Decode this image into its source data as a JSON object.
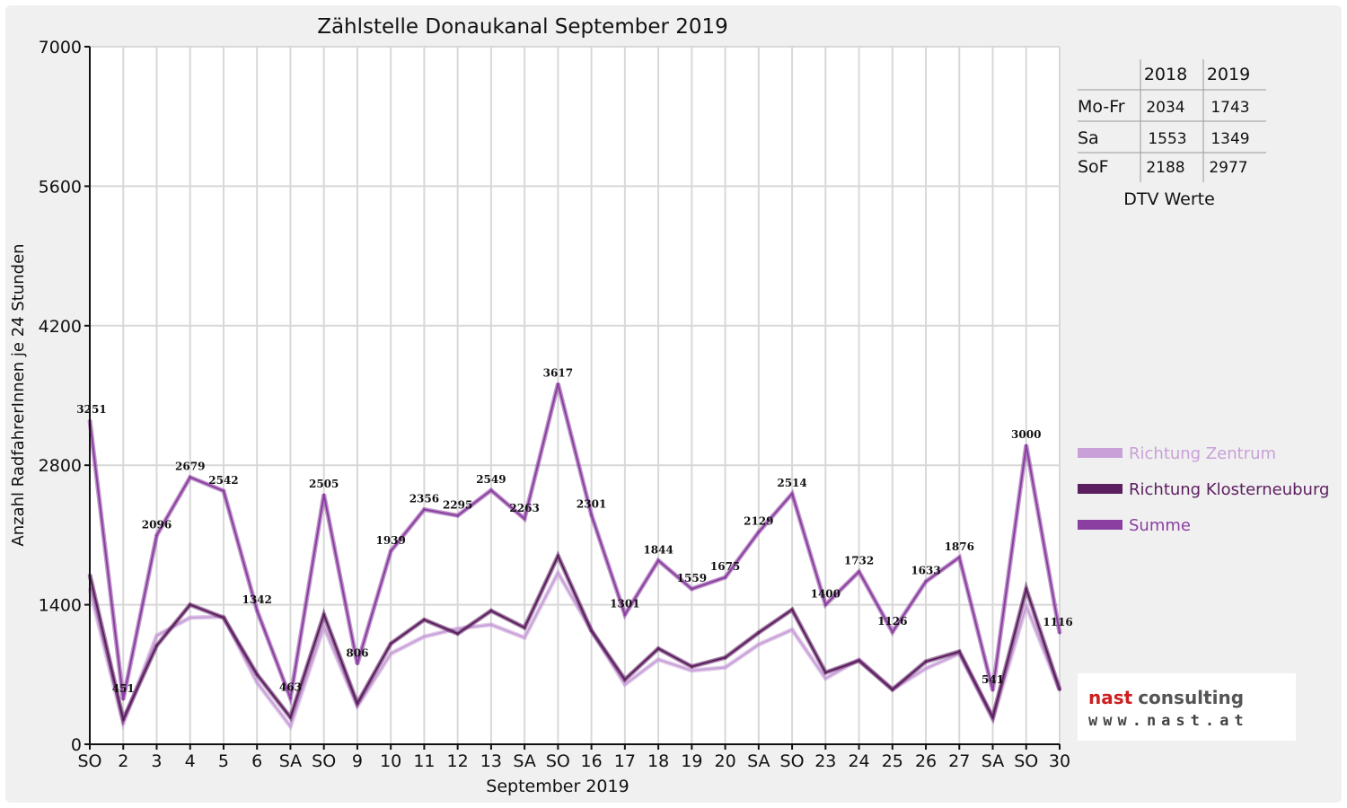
{
  "chart_data": {
    "type": "line",
    "title": "Zählstelle Donaukanal September 2019",
    "xlabel": "September 2019",
    "ylabel": "Anzahl RadfahrerInnen je 24 Stunden",
    "ylim": [
      0,
      7000
    ],
    "yticks": [
      "0",
      "1400",
      "2800",
      "4200",
      "5600",
      "7000"
    ],
    "grid": true,
    "legend_position": "right",
    "categories": [
      "SO",
      "2",
      "3",
      "4",
      "5",
      "6",
      "SA",
      "SO",
      "9",
      "10",
      "11",
      "12",
      "13",
      "SA",
      "SO",
      "16",
      "17",
      "18",
      "19",
      "20",
      "SA",
      "SO",
      "23",
      "24",
      "25",
      "26",
      "27",
      "SA",
      "SO",
      "30"
    ],
    "category_colors": [
      "#e00000",
      "#111111",
      "#111111",
      "#111111",
      "#111111",
      "#111111",
      "#111111",
      "#e00000",
      "#111111",
      "#111111",
      "#111111",
      "#111111",
      "#111111",
      "#111111",
      "#e00000",
      "#111111",
      "#111111",
      "#111111",
      "#111111",
      "#111111",
      "#111111",
      "#e00000",
      "#111111",
      "#111111",
      "#111111",
      "#111111",
      "#111111",
      "#111111",
      "#e00000",
      "#111111"
    ],
    "series": [
      {
        "name": "Richtung Zentrum",
        "color": "#c9a0d8",
        "values": [
          1560,
          210,
          1090,
          1270,
          1280,
          620,
          180,
          1180,
          380,
          910,
          1080,
          1160,
          1200,
          1070,
          1720,
          1140,
          600,
          850,
          740,
          770,
          1000,
          1150,
          660,
          850,
          550,
          760,
          910,
          250,
          1390,
          540
        ]
      },
      {
        "name": "Richtung Klosterneuburg",
        "color": "#5b1e5e",
        "values": [
          1700,
          250,
          990,
          1400,
          1270,
          700,
          270,
          1300,
          410,
          1010,
          1250,
          1110,
          1340,
          1170,
          1890,
          1140,
          650,
          960,
          780,
          870,
          1120,
          1350,
          720,
          840,
          550,
          830,
          930,
          270,
          1560,
          550
        ]
      },
      {
        "name": "Summe",
        "color": "#8b3fa0",
        "values": [
          3251,
          451,
          2096,
          2679,
          2542,
          1342,
          463,
          2505,
          806,
          1939,
          2356,
          2295,
          2549,
          2263,
          3617,
          2301,
          1301,
          1844,
          1559,
          1675,
          2129,
          2514,
          1400,
          1732,
          1126,
          1633,
          1876,
          541,
          3000,
          1116
        ],
        "labels": [
          "3251",
          "451",
          "2096",
          "2679",
          "2542",
          "1342",
          "463",
          "2505",
          "806",
          "1939",
          "2356",
          "2295",
          "2549",
          "2263",
          "3617",
          "2301",
          "1301",
          "1844",
          "1559",
          "1675",
          "2129",
          "2514",
          "1400",
          "1732",
          "1126",
          "1633",
          "1876",
          "541",
          "3000",
          "1116"
        ]
      }
    ],
    "dtv_table": {
      "caption": "DTV Werte",
      "headers": [
        "",
        "2018",
        "2019"
      ],
      "rows": [
        {
          "label": "Mo-Fr",
          "v2018": "2034",
          "v2019": "1743"
        },
        {
          "label": "Sa",
          "v2018": "1553",
          "v2019": "1349"
        },
        {
          "label": "SoF",
          "v2018": "2188",
          "v2019": "2977"
        }
      ]
    }
  },
  "logo": {
    "brand_a": "nast",
    "brand_b": "consulting",
    "url": "www.nast.at",
    "color_a": "#cc2020",
    "color_b": "#555555"
  }
}
